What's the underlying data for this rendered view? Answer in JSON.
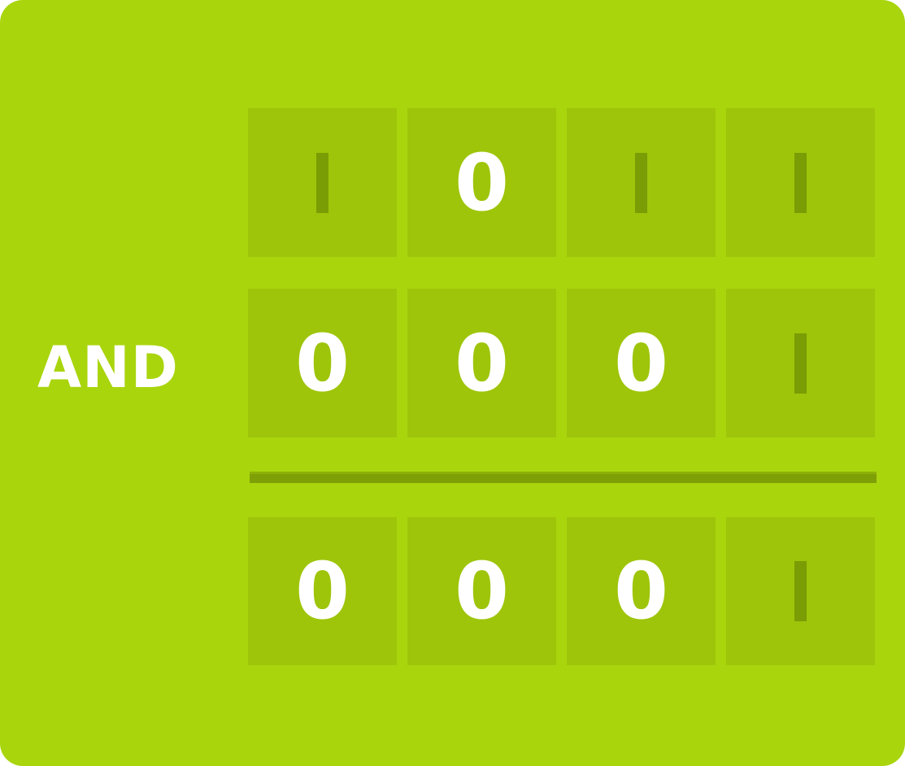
{
  "operator": "AND",
  "rows": [
    {
      "name": "operand-a",
      "bits": [
        "1",
        "0",
        "1",
        "1"
      ]
    },
    {
      "name": "operand-b",
      "bits": [
        "0",
        "0",
        "0",
        "1"
      ]
    },
    {
      "name": "result",
      "bits": [
        "0",
        "0",
        "0",
        "1"
      ]
    }
  ],
  "colors": {
    "card_background": "#a9d50d",
    "cell_background": "#9ec50a",
    "one_bit": "#7a9c04",
    "zero_bit": "#ffffff",
    "rule": "#7f9f07"
  }
}
